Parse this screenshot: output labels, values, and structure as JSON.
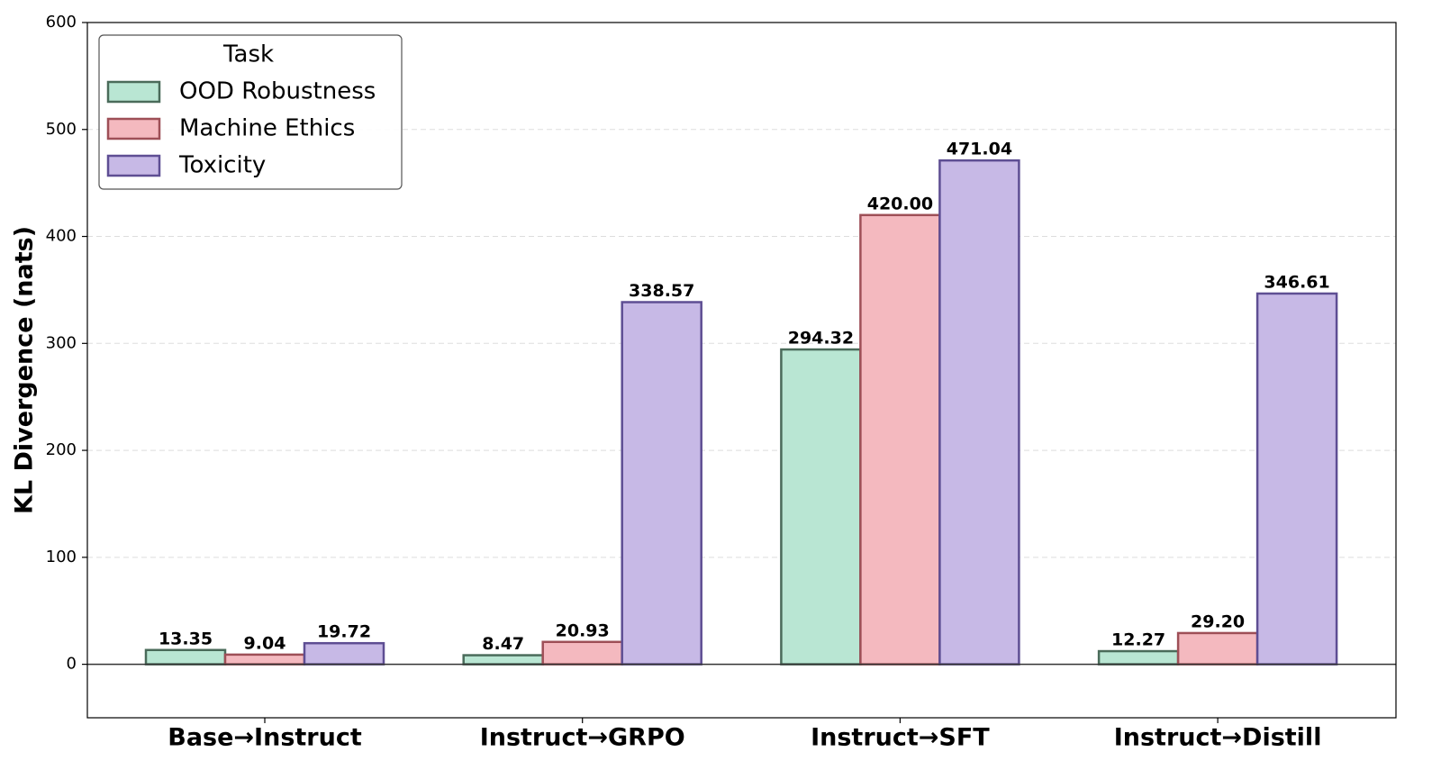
{
  "chart_data": {
    "type": "bar",
    "ylabel": "KL Divergence (nats)",
    "categories": [
      "Base→Instruct",
      "Instruct→GRPO",
      "Instruct→SFT",
      "Instruct→Distill"
    ],
    "series": [
      {
        "name": "OOD Robustness",
        "color": "#b9e6d3",
        "edgecolor": "#4a6b5a",
        "values": [
          13.35,
          8.47,
          294.32,
          12.27
        ],
        "value_labels": [
          "13.35",
          "8.47",
          "294.32",
          "12.27"
        ]
      },
      {
        "name": "Machine Ethics",
        "color": "#f4b9bf",
        "edgecolor": "#9e4f57",
        "values": [
          9.04,
          20.93,
          420,
          29.2
        ],
        "value_labels": [
          "9.04",
          "20.93",
          "420.00",
          "29.20"
        ]
      },
      {
        "name": "Toxicity",
        "color": "#c7b9e6",
        "edgecolor": "#5e4e93",
        "values": [
          19.72,
          338.57,
          471.04,
          346.61
        ],
        "value_labels": [
          "19.72",
          "338.57",
          "471.04",
          "346.61"
        ]
      }
    ],
    "legend_title": "Task",
    "legend": "upper left",
    "ylim": [
      -50,
      600
    ],
    "yticks": [
      0,
      100,
      200,
      300,
      400,
      500,
      600
    ],
    "grid": true
  }
}
